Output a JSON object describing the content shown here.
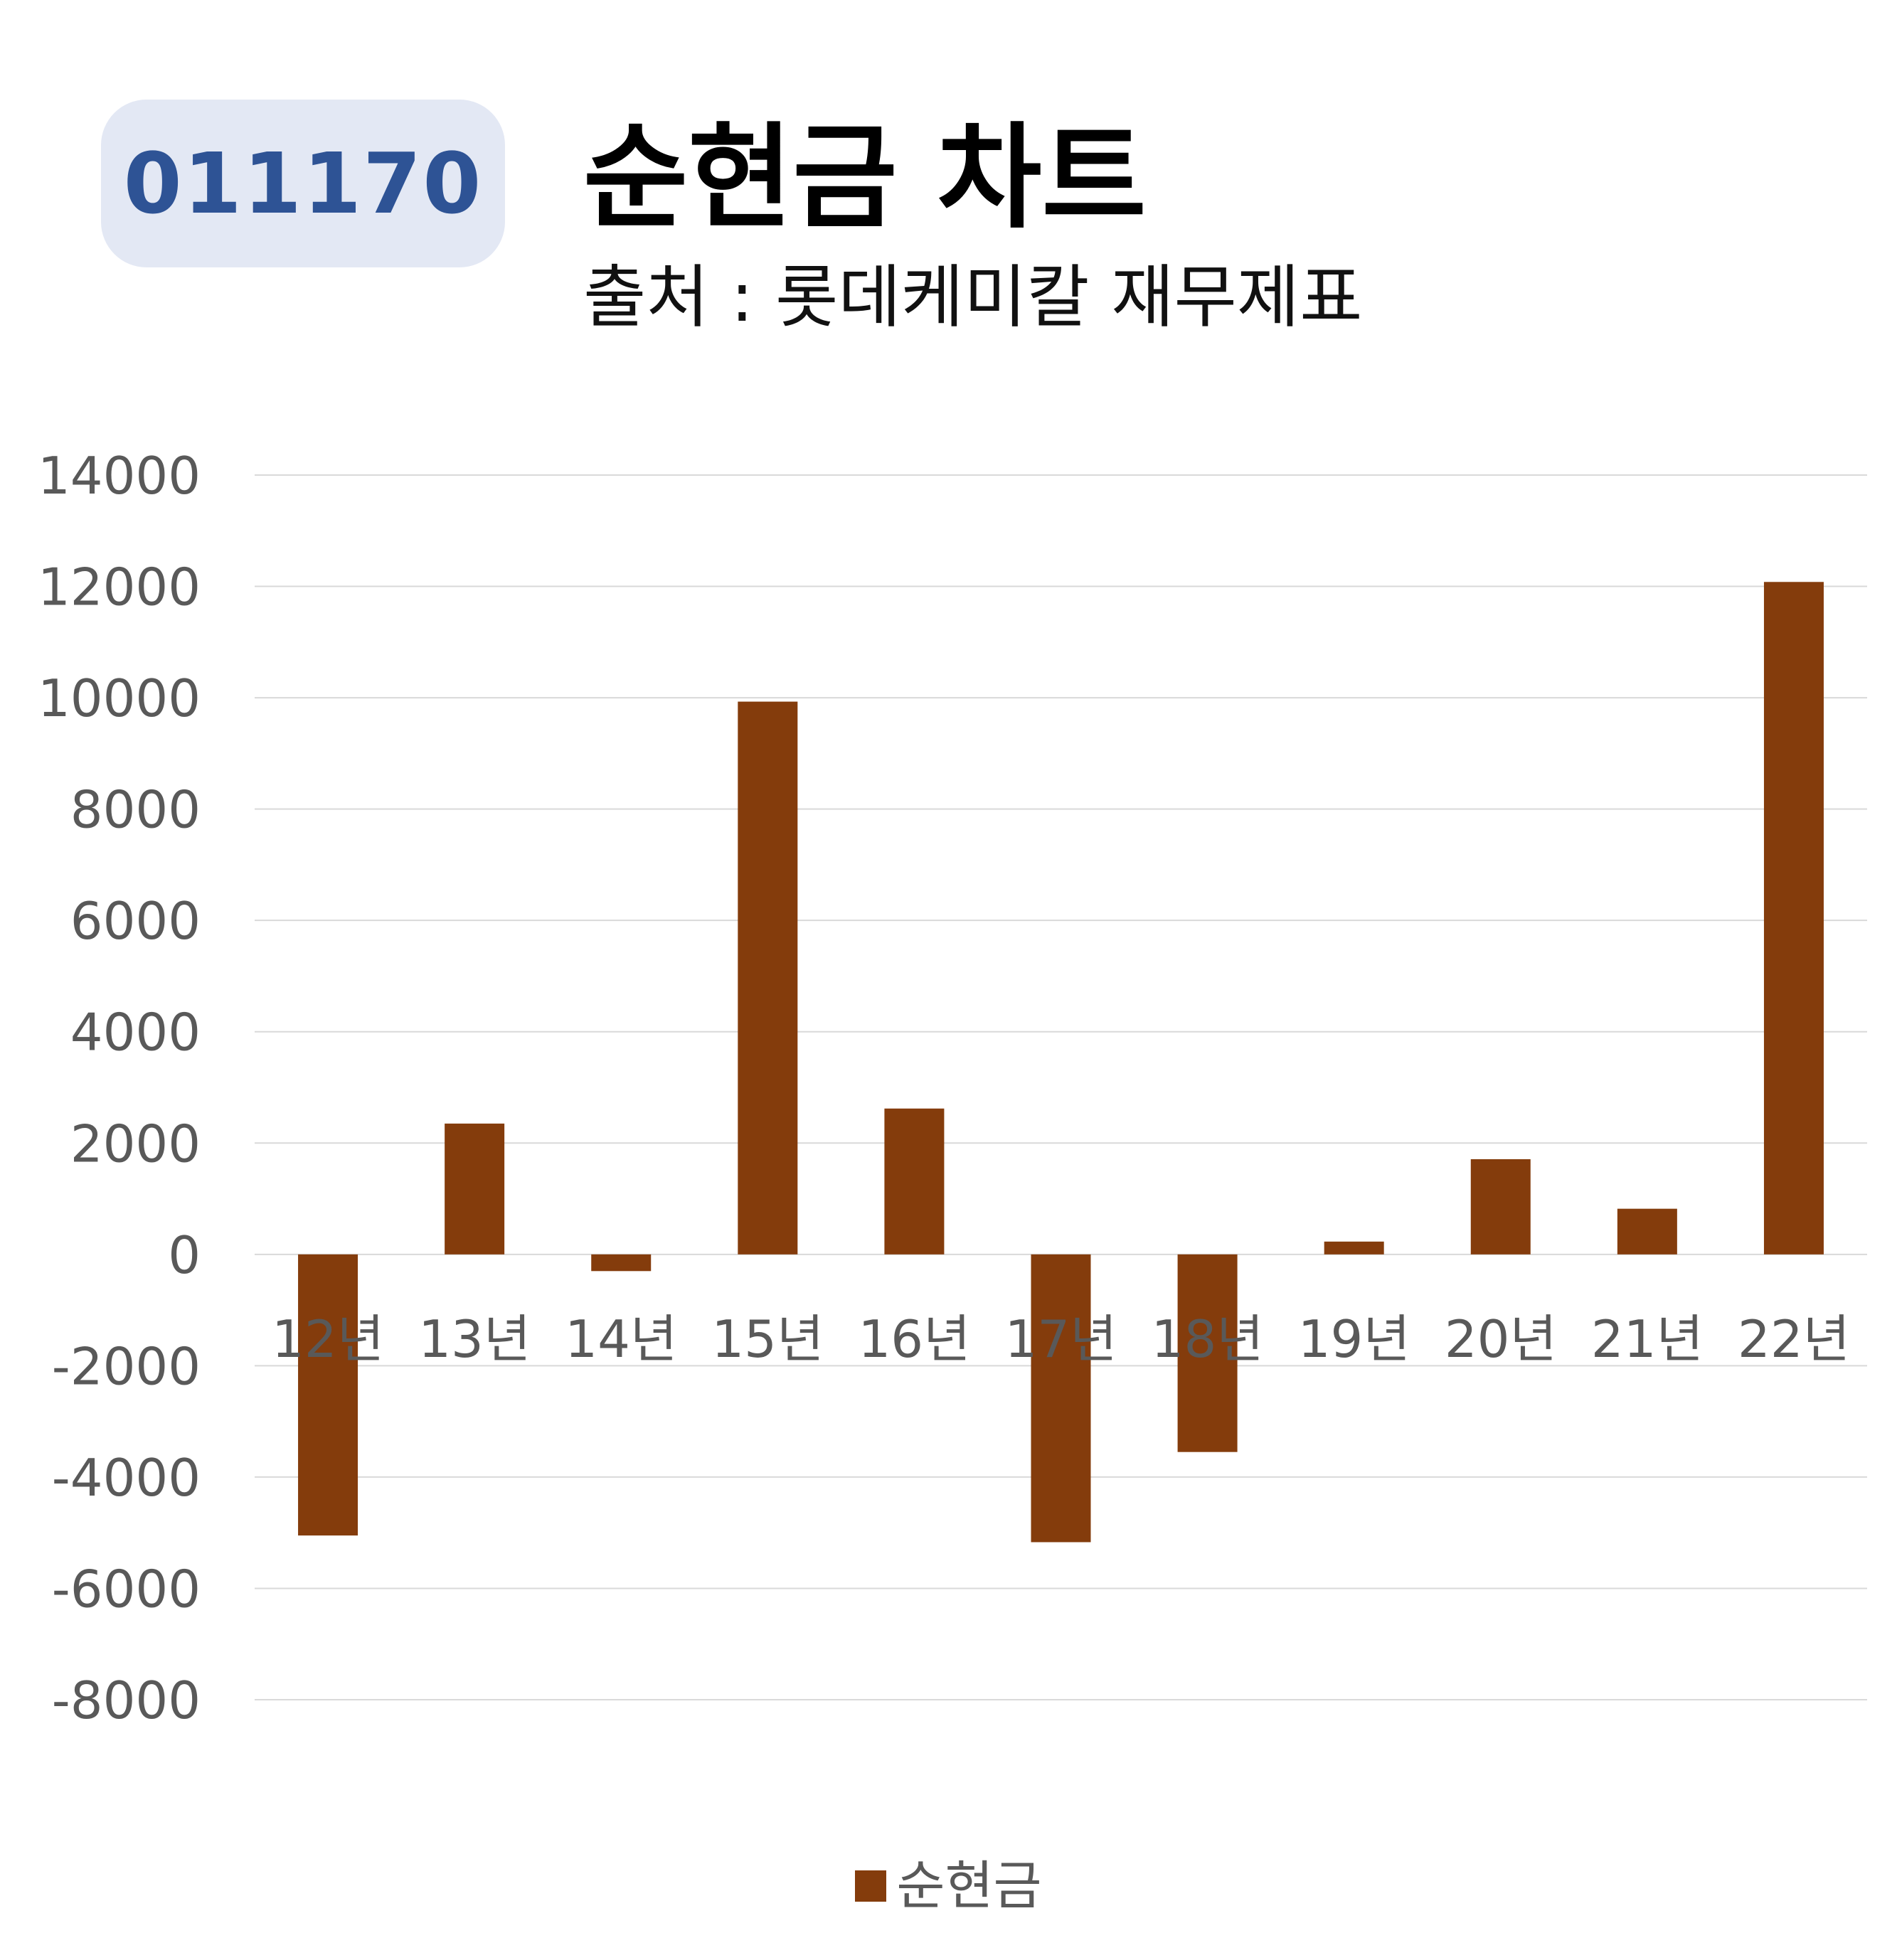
{
  "badge": {
    "code": "011170"
  },
  "header": {
    "title": "순현금 차트",
    "subtitle": "출처 : 롯데케미칼 재무제표"
  },
  "chart_data": {
    "type": "bar",
    "title": "순현금 차트",
    "subtitle": "출처 : 롯데케미칼 재무제표",
    "xlabel": "",
    "ylabel": "",
    "categories": [
      "12년",
      "13년",
      "14년",
      "15년",
      "16년",
      "17년",
      "18년",
      "19년",
      "20년",
      "21년",
      "22년"
    ],
    "series": [
      {
        "name": "순현금",
        "color": "#843c0c",
        "values": [
          -5050,
          2350,
          -300,
          9930,
          2620,
          -5170,
          -3550,
          230,
          1710,
          820,
          12080
        ]
      }
    ],
    "ylim": [
      -8000,
      14000
    ],
    "yticks": [
      14000,
      12000,
      10000,
      8000,
      6000,
      4000,
      2000,
      0,
      -2000,
      -4000,
      -6000,
      -8000
    ],
    "grid": true,
    "legend_position": "bottom-center"
  },
  "colors": {
    "bar": "#843c0c",
    "gridline": "#d9d9d9",
    "axis_text": "#595959",
    "badge_bg": "#e3e8f4",
    "badge_text": "#2e5395"
  }
}
